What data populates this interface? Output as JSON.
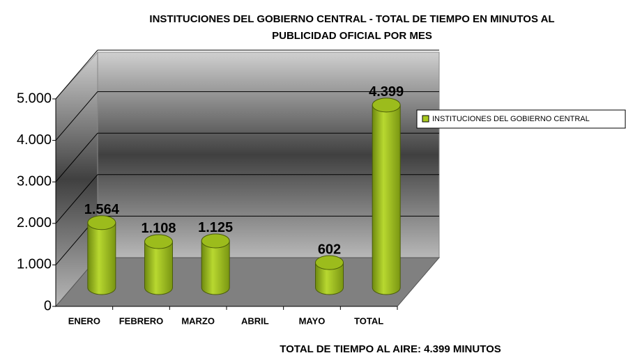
{
  "chart_data": {
    "type": "bar",
    "title": [
      "INSTITUCIONES DEL GOBIERNO CENTRAL - TOTAL DE TIEMPO EN MINUTOS AL",
      "PUBLICIDAD OFICIAL POR MES"
    ],
    "categories": [
      "ENERO",
      "FEBRERO",
      "MARZO",
      "ABRIL",
      "MAYO",
      "TOTAL"
    ],
    "series": [
      {
        "name": "INSTITUCIONES DEL GOBIERNO CENTRAL",
        "color": "#a8c820",
        "values": [
          1564,
          1108,
          1125,
          null,
          602,
          4399
        ],
        "value_labels": [
          "1.564",
          "1.108",
          "1.125",
          null,
          "602",
          "4.399"
        ]
      }
    ],
    "ylim": [
      0,
      5000
    ],
    "yticks": [
      0,
      {
        "value": 1000,
        "label": "1.000"
      },
      {
        "value": 2000,
        "label": "2.000"
      },
      {
        "value": 3000,
        "label": "3.000"
      },
      {
        "value": 4000,
        "label": "4.000"
      },
      {
        "value": 5000,
        "label": "5.000"
      }
    ],
    "grid": true,
    "legend": "right",
    "annotation": "TOTAL DE TIEMPO AL AIRE: 4.399 MINUTOS"
  }
}
